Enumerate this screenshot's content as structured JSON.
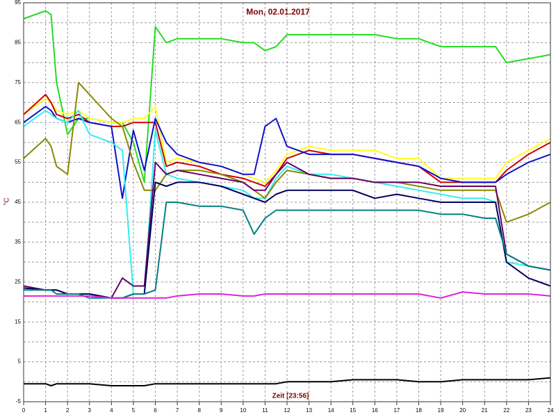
{
  "chart_data": {
    "type": "line",
    "title": "Mon, 02.01.2017",
    "y_label": "°C",
    "x_label": "Zeit [23:56]",
    "xlim": [
      0,
      24
    ],
    "xticks": [
      0,
      1,
      2,
      3,
      4,
      5,
      6,
      7,
      8,
      9,
      10,
      11,
      12,
      13,
      14,
      15,
      16,
      17,
      18,
      19,
      20,
      21,
      22,
      23,
      24
    ],
    "ylim": [
      -5,
      95
    ],
    "yticks": [
      -5,
      5,
      15,
      25,
      35,
      45,
      55,
      65,
      75,
      85,
      95
    ],
    "yminorticks": [
      0,
      10,
      20,
      30,
      40,
      50,
      60,
      70,
      80,
      90
    ],
    "grid": true,
    "x": [
      0,
      1,
      1.25,
      1.5,
      2,
      2.5,
      3,
      4,
      4.5,
      5,
      5.5,
      6,
      6.5,
      7,
      8,
      9,
      10,
      10.5,
      11,
      11.5,
      12,
      13,
      14,
      15,
      16,
      17,
      18,
      19,
      20,
      21,
      21.5,
      22,
      23,
      24
    ],
    "series": [
      {
        "color": "#22dd22",
        "values": [
          91,
          93,
          92,
          75,
          62,
          66,
          66,
          65,
          65,
          60,
          50,
          89,
          85,
          86,
          86,
          86,
          85,
          85,
          83,
          84,
          87,
          87,
          87,
          87,
          87,
          86,
          86,
          84,
          84,
          84,
          84,
          80,
          81,
          82
        ]
      },
      {
        "color": "#ffff22",
        "values": [
          67,
          71,
          70,
          68,
          67,
          68,
          66,
          65,
          65,
          66,
          66,
          69,
          55,
          56,
          55,
          54,
          52,
          51,
          50,
          53,
          57,
          59,
          58,
          58,
          58,
          56,
          56,
          51,
          51,
          51,
          51,
          55,
          58,
          61
        ]
      },
      {
        "color": "#cc0000",
        "values": [
          67,
          72,
          70,
          67,
          66,
          67,
          65,
          64,
          64,
          65,
          65,
          65,
          54,
          55,
          54,
          52,
          51,
          50,
          49,
          52,
          56,
          58,
          57,
          57,
          56,
          55,
          54,
          50,
          50,
          50,
          50,
          53,
          57,
          60
        ]
      },
      {
        "color": "#1010cc",
        "values": [
          65,
          69,
          68,
          66,
          65,
          66,
          65,
          64,
          46,
          63,
          53,
          66,
          60,
          57,
          55,
          54,
          52,
          52,
          64,
          66,
          59,
          57,
          57,
          57,
          56,
          55,
          54,
          51,
          50,
          50,
          50,
          52,
          55,
          57
        ]
      },
      {
        "color": "#33eeee",
        "values": [
          64,
          68,
          67,
          66,
          65,
          68,
          62,
          60,
          58,
          22,
          22,
          63,
          52,
          51,
          50,
          49,
          48,
          46,
          46,
          51,
          54,
          52,
          52,
          51,
          50,
          49,
          48,
          47,
          46,
          46,
          45,
          30,
          29,
          28
        ]
      },
      {
        "color": "#888800",
        "values": [
          56,
          61,
          59,
          54,
          52,
          75,
          72,
          66,
          64,
          55,
          48,
          48,
          52,
          53,
          53,
          52,
          50,
          48,
          46,
          50,
          53,
          52,
          51,
          51,
          50,
          50,
          49,
          48,
          48,
          48,
          48,
          40,
          42,
          45
        ]
      },
      {
        "color": "#660066",
        "values": [
          24,
          23,
          23,
          23,
          22,
          22,
          22,
          21,
          26,
          24,
          24,
          55,
          52,
          53,
          52,
          51,
          50,
          48,
          48,
          52,
          55,
          52,
          51,
          51,
          50,
          50,
          50,
          49,
          49,
          49,
          49,
          32,
          29,
          28
        ]
      },
      {
        "color": "#000060",
        "values": [
          23.5,
          23,
          23,
          23,
          22,
          22,
          22,
          21,
          21,
          22,
          22,
          50,
          49,
          50,
          50,
          49,
          47,
          46,
          45,
          47,
          48,
          48,
          48,
          48,
          46,
          47,
          46,
          45,
          45,
          45,
          45,
          30,
          26,
          24
        ]
      },
      {
        "color": "#008080",
        "values": [
          23,
          23,
          23,
          22,
          22,
          22,
          21,
          21,
          21,
          22,
          22,
          23,
          45,
          45,
          44,
          44,
          43,
          37,
          41,
          43,
          43,
          43,
          43,
          43,
          43,
          43,
          43,
          42,
          42,
          41,
          41,
          32,
          29,
          28
        ]
      },
      {
        "color": "#dd22dd",
        "values": [
          21.5,
          21.5,
          21.5,
          21.5,
          21.5,
          21.5,
          21.5,
          21,
          21,
          21,
          21,
          21,
          21,
          21.5,
          22,
          22,
          21.5,
          21.5,
          22,
          22,
          22,
          22,
          22,
          22,
          22,
          22,
          22,
          21,
          22.5,
          22,
          22,
          22,
          22,
          21.5
        ]
      },
      {
        "color": "#000000",
        "values": [
          -0.5,
          -0.5,
          -1,
          -0.5,
          -0.5,
          -0.5,
          -0.5,
          -1,
          -1,
          -1,
          -1,
          -0.5,
          -0.5,
          -0.5,
          -0.5,
          -0.5,
          -0.5,
          -0.5,
          -0.5,
          -0.5,
          0,
          0,
          0,
          0.5,
          0.5,
          0.5,
          0,
          0,
          0.5,
          0.5,
          0.5,
          0.5,
          0.5,
          1
        ]
      }
    ]
  }
}
